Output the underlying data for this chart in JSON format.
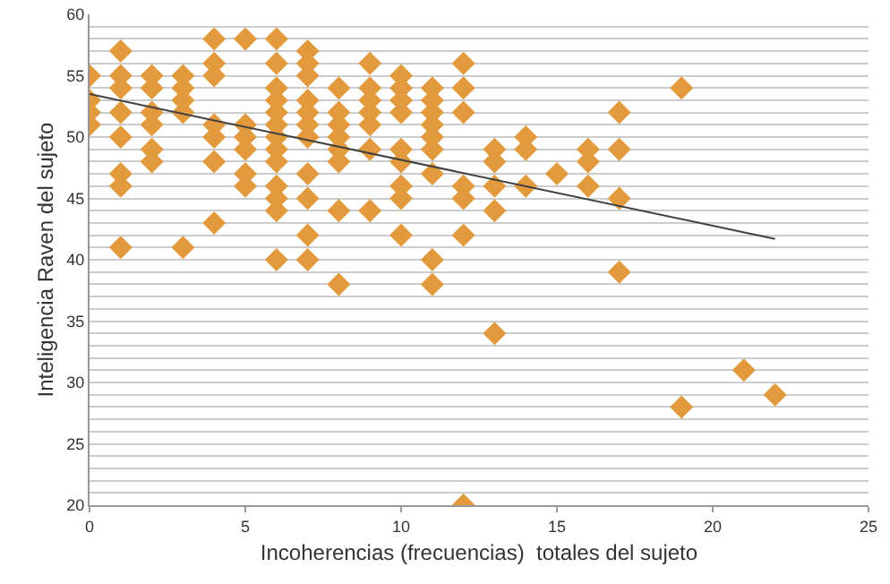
{
  "chart_data": {
    "type": "scatter",
    "xlabel": "Incoherencias (frecuencias)  totales del sujeto",
    "ylabel": "Inteligencia Raven del sujeto",
    "xlim": [
      0,
      25
    ],
    "xticks": [
      0,
      5,
      10,
      15,
      20,
      25
    ],
    "ylim": [
      20,
      60
    ],
    "yticks": [
      20,
      {
        "value": 21,
        "label": null
      },
      {
        "value": 22,
        "label": null
      },
      {
        "value": 23,
        "label": null
      },
      {
        "value": 24,
        "label": null
      },
      25,
      {
        "value": 26,
        "label": null
      },
      {
        "value": 27,
        "label": null
      },
      {
        "value": 28,
        "label": null
      },
      {
        "value": 29,
        "label": null
      },
      30,
      {
        "value": 31,
        "label": null
      },
      {
        "value": 32,
        "label": null
      },
      {
        "value": 33,
        "label": null
      },
      {
        "value": 34,
        "label": null
      },
      35,
      {
        "value": 36,
        "label": null
      },
      {
        "value": 37,
        "label": null
      },
      {
        "value": 38,
        "label": null
      },
      {
        "value": 39,
        "label": null
      },
      40,
      {
        "value": 41,
        "label": null
      },
      {
        "value": 42,
        "label": null
      },
      {
        "value": 43,
        "label": null
      },
      {
        "value": 44,
        "label": null
      },
      45,
      {
        "value": 46,
        "label": null
      },
      {
        "value": 47,
        "label": null
      },
      {
        "value": 48,
        "label": null
      },
      {
        "value": 49,
        "label": null
      },
      50,
      {
        "value": 51,
        "label": null
      },
      {
        "value": 52,
        "label": null
      },
      {
        "value": 53,
        "label": null
      },
      {
        "value": 54,
        "label": null
      },
      55,
      {
        "value": 56,
        "label": null
      },
      {
        "value": 57,
        "label": null
      },
      {
        "value": 58,
        "label": null
      },
      {
        "value": 59,
        "label": null
      },
      60
    ],
    "grid": "y",
    "marker": "diamond",
    "series": [
      {
        "color": "#e39a3c",
        "x": [
          0,
          0,
          0,
          0,
          1,
          1,
          1,
          1,
          1,
          1,
          1,
          1,
          2,
          2,
          2,
          2,
          2,
          2,
          3,
          3,
          3,
          3,
          3,
          4,
          4,
          4,
          4,
          4,
          4,
          4,
          5,
          5,
          5,
          5,
          5,
          5,
          6,
          6,
          6,
          6,
          6,
          6,
          6,
          6,
          6,
          6,
          6,
          6,
          6,
          7,
          7,
          7,
          7,
          7,
          7,
          7,
          7,
          7,
          7,
          7,
          8,
          8,
          8,
          8,
          8,
          8,
          8,
          8,
          9,
          9,
          9,
          9,
          9,
          9,
          9,
          10,
          10,
          10,
          10,
          10,
          10,
          10,
          10,
          10,
          11,
          11,
          11,
          11,
          11,
          11,
          11,
          11,
          11,
          12,
          12,
          12,
          12,
          12,
          12,
          12,
          13,
          13,
          13,
          13,
          13,
          14,
          14,
          14,
          15,
          16,
          16,
          16,
          17,
          17,
          17,
          17,
          19,
          19,
          21,
          22
        ],
        "values": [
          55,
          53,
          52,
          51,
          57,
          55,
          54,
          52,
          50,
          47,
          46,
          41,
          55,
          54,
          52,
          51,
          49,
          48,
          55,
          54,
          53,
          52,
          41,
          58,
          56,
          55,
          51,
          50,
          48,
          43,
          58,
          51,
          50,
          49,
          47,
          46,
          58,
          56,
          54,
          53,
          52,
          51,
          50,
          49,
          48,
          46,
          45,
          44,
          40,
          57,
          56,
          55,
          53,
          52,
          51,
          50,
          47,
          45,
          42,
          40,
          54,
          52,
          51,
          50,
          49,
          48,
          44,
          38,
          56,
          54,
          53,
          52,
          51,
          49,
          44,
          55,
          54,
          53,
          52,
          49,
          48,
          46,
          45,
          42,
          54,
          53,
          52,
          51,
          50,
          49,
          47,
          40,
          38,
          56,
          54,
          52,
          46,
          45,
          42,
          20,
          49,
          48,
          46,
          44,
          34,
          50,
          49,
          46,
          47,
          49,
          48,
          46,
          52,
          49,
          45,
          39,
          54,
          28,
          31,
          29
        ]
      },
      {
        "type": "line",
        "color": "#404040",
        "marker": "none",
        "x": [
          0,
          22
        ],
        "values": [
          53.5,
          41.7
        ]
      }
    ]
  }
}
